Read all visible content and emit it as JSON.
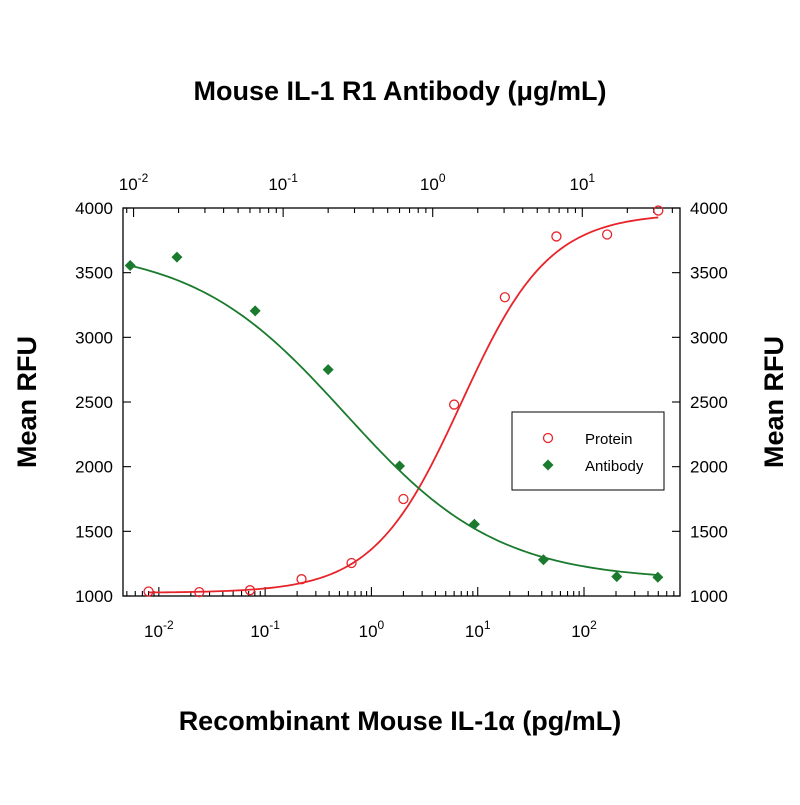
{
  "chart_data": {
    "type": "scatter",
    "top_axis": {
      "label": "Mouse IL-1 R1 Antibody (μg/mL)",
      "scale": "log",
      "range": [
        0.0085,
        45
      ],
      "ticks": [
        {
          "value": 0.01,
          "base": "10",
          "exp": "-2"
        },
        {
          "value": 0.1,
          "base": "10",
          "exp": "-1"
        },
        {
          "value": 1,
          "base": "10",
          "exp": "0"
        },
        {
          "value": 10,
          "base": "10",
          "exp": "1"
        }
      ]
    },
    "bottom_axis": {
      "label": "Recombinant Mouse IL-1α (pg/mL)",
      "scale": "log",
      "range": [
        0.0046,
        800
      ],
      "ticks": [
        {
          "value": 0.01,
          "base": "10",
          "exp": "-2"
        },
        {
          "value": 0.1,
          "base": "10",
          "exp": "-1"
        },
        {
          "value": 1,
          "base": "10",
          "exp": "0"
        },
        {
          "value": 10,
          "base": "10",
          "exp": "1"
        },
        {
          "value": 100,
          "base": "10",
          "exp": "2"
        }
      ]
    },
    "left_axis": {
      "label": "Mean RFU",
      "range": [
        1000,
        4000
      ],
      "ticks": [
        "1000",
        "1500",
        "2000",
        "2500",
        "3000",
        "3500",
        "4000"
      ]
    },
    "right_axis": {
      "label": "Mean RFU",
      "range": [
        1000,
        4000
      ],
      "ticks": [
        "1000",
        "1500",
        "2000",
        "2500",
        "3000",
        "3500",
        "4000"
      ]
    },
    "legend": {
      "position": "right-middle",
      "entries": [
        {
          "name": "Protein",
          "marker": "open-circle",
          "color": "#e8242b"
        },
        {
          "name": "Antibody",
          "marker": "filled-diamond",
          "color": "#1a7a2e"
        }
      ]
    },
    "grid": false,
    "series": [
      {
        "name": "Protein",
        "axis": "bottom",
        "color": "#e8242b",
        "marker": "open-circle",
        "points": [
          {
            "x": 0.008,
            "y": 1035
          },
          {
            "x": 0.024,
            "y": 1030
          },
          {
            "x": 0.072,
            "y": 1045
          },
          {
            "x": 0.22,
            "y": 1130
          },
          {
            "x": 0.65,
            "y": 1255
          },
          {
            "x": 2.0,
            "y": 1750
          },
          {
            "x": 6.0,
            "y": 2480
          },
          {
            "x": 18,
            "y": 3310
          },
          {
            "x": 55,
            "y": 3780
          },
          {
            "x": 165,
            "y": 3795
          },
          {
            "x": 500,
            "y": 3980
          }
        ],
        "fit": {
          "bottom": 1025,
          "top": 3960,
          "ec50": 7.0,
          "hill": 1.05
        }
      },
      {
        "name": "Antibody",
        "axis": "top",
        "color": "#1a7a2e",
        "marker": "filled-diamond",
        "points": [
          {
            "x": 0.0095,
            "y": 3555
          },
          {
            "x": 0.0195,
            "y": 3620
          },
          {
            "x": 0.065,
            "y": 3205
          },
          {
            "x": 0.2,
            "y": 2750
          },
          {
            "x": 0.6,
            "y": 2005
          },
          {
            "x": 1.9,
            "y": 1555
          },
          {
            "x": 5.5,
            "y": 1280
          },
          {
            "x": 17,
            "y": 1150
          },
          {
            "x": 32,
            "y": 1145
          }
        ],
        "fit": {
          "bottom": 1120,
          "top": 3700,
          "ec50": 0.26,
          "hill": 0.85
        }
      }
    ]
  }
}
